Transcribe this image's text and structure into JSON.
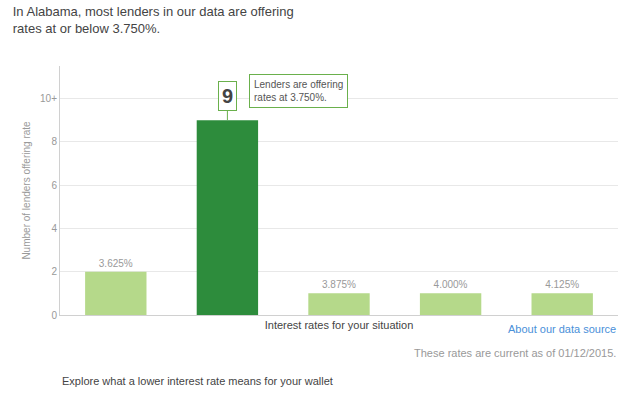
{
  "chart_data": {
    "type": "bar",
    "title": "In Alabama, most lenders in our data are offering\nrates at or below 3.750%.",
    "xlabel": "Interest rates for your situation",
    "ylabel": "Number of lenders offering rate",
    "categories": [
      "3.625%",
      null,
      "3.875%",
      "4.000%",
      "4.125%"
    ],
    "values": [
      2,
      9,
      1,
      1,
      1
    ],
    "colors": [
      "#b5d98a",
      "#2d8c3c",
      "#b5d98a",
      "#b5d98a",
      "#b5d98a"
    ],
    "ylim": [
      0,
      11.5
    ],
    "yticks": [
      0,
      2,
      4,
      6,
      8,
      {
        "value": 10,
        "label": "10+"
      }
    ],
    "grid": true,
    "tick_labels": "y",
    "annotations": [
      {
        "text": "9",
        "x": 1
      },
      {
        "text": "Lenders are offering\nrates at 3.750%.",
        "x": 1
      },
      {
        "text": "About our data source"
      },
      {
        "text": "These rates are current as of 01/12/2015."
      },
      {
        "text": "Explore what a lower interest rate means for your wallet"
      }
    ]
  }
}
